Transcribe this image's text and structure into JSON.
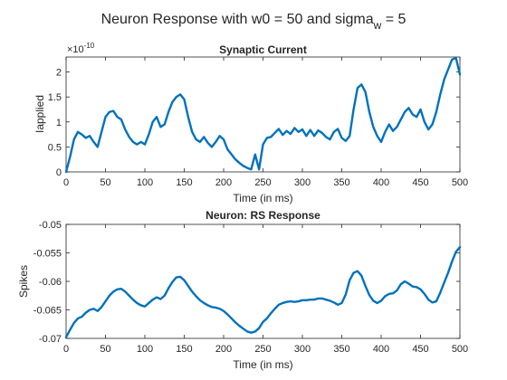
{
  "figure": {
    "suptitle_main": "Neuron Response with w0 = 50 and sigma",
    "suptitle_sub": "w",
    "suptitle_tail": " = 5"
  },
  "chart_data": [
    {
      "type": "line",
      "title": "Synaptic Current",
      "xlabel": "Time (in ms)",
      "ylabel": "Iapplied",
      "exponent_label": "×10",
      "exponent_power": "-10",
      "xlim": [
        0,
        500
      ],
      "ylim": [
        0,
        2.3
      ],
      "xticks": [
        "0",
        "50",
        "100",
        "150",
        "200",
        "250",
        "300",
        "350",
        "400",
        "450",
        "500"
      ],
      "yticks": [
        "0",
        "0.5",
        "1",
        "1.5",
        "2"
      ],
      "color": "#0072BD",
      "x": [
        0,
        5,
        10,
        15,
        20,
        25,
        30,
        35,
        40,
        45,
        50,
        55,
        60,
        65,
        70,
        75,
        80,
        85,
        90,
        95,
        100,
        105,
        110,
        115,
        120,
        125,
        130,
        135,
        140,
        145,
        150,
        155,
        160,
        165,
        170,
        175,
        180,
        185,
        190,
        195,
        200,
        205,
        210,
        215,
        220,
        225,
        230,
        235,
        240,
        245,
        250,
        255,
        260,
        265,
        270,
        275,
        280,
        285,
        290,
        295,
        300,
        305,
        310,
        315,
        320,
        325,
        330,
        335,
        340,
        345,
        350,
        355,
        360,
        365,
        370,
        375,
        380,
        385,
        390,
        395,
        400,
        405,
        410,
        415,
        420,
        425,
        430,
        435,
        440,
        445,
        450,
        455,
        460,
        465,
        470,
        475,
        480,
        485,
        490,
        495,
        500
      ],
      "y": [
        0.0,
        0.3,
        0.65,
        0.8,
        0.75,
        0.68,
        0.72,
        0.6,
        0.5,
        0.8,
        1.1,
        1.2,
        1.22,
        1.1,
        1.05,
        0.85,
        0.7,
        0.6,
        0.55,
        0.6,
        0.55,
        0.75,
        1.0,
        1.1,
        0.9,
        0.95,
        1.2,
        1.4,
        1.5,
        1.55,
        1.45,
        1.1,
        0.8,
        0.65,
        0.6,
        0.7,
        0.58,
        0.5,
        0.6,
        0.72,
        0.65,
        0.45,
        0.35,
        0.25,
        0.18,
        0.12,
        0.08,
        0.05,
        0.35,
        0.05,
        0.55,
        0.68,
        0.7,
        0.78,
        0.86,
        0.74,
        0.82,
        0.76,
        0.88,
        0.8,
        0.85,
        0.72,
        0.84,
        0.72,
        0.83,
        0.78,
        0.7,
        0.65,
        0.8,
        0.86,
        0.68,
        0.62,
        0.72,
        1.25,
        1.68,
        1.75,
        1.6,
        1.2,
        0.9,
        0.72,
        0.6,
        0.8,
        0.95,
        0.82,
        0.9,
        1.05,
        1.2,
        1.28,
        1.15,
        1.1,
        1.25,
        1.0,
        0.85,
        0.95,
        1.2,
        1.55,
        1.85,
        2.05,
        2.25,
        2.28,
        1.95
      ]
    },
    {
      "type": "line",
      "title": "Neuron: RS Response",
      "xlabel": "Time (in ms)",
      "ylabel": "Spikes",
      "xlim": [
        0,
        500
      ],
      "ylim": [
        -0.07,
        -0.05
      ],
      "xticks": [
        "0",
        "50",
        "100",
        "150",
        "200",
        "250",
        "300",
        "350",
        "400",
        "450",
        "500"
      ],
      "yticks": [
        "-0.07",
        "-0.065",
        "-0.06",
        "-0.055",
        "-0.05"
      ],
      "color": "#0072BD",
      "x": [
        0,
        5,
        10,
        15,
        20,
        25,
        30,
        35,
        40,
        45,
        50,
        55,
        60,
        65,
        70,
        75,
        80,
        85,
        90,
        95,
        100,
        105,
        110,
        115,
        120,
        125,
        130,
        135,
        140,
        145,
        150,
        155,
        160,
        165,
        170,
        175,
        180,
        185,
        190,
        195,
        200,
        205,
        210,
        215,
        220,
        225,
        230,
        235,
        240,
        245,
        250,
        255,
        260,
        265,
        270,
        275,
        280,
        285,
        290,
        295,
        300,
        305,
        310,
        315,
        320,
        325,
        330,
        335,
        340,
        345,
        350,
        355,
        360,
        365,
        370,
        375,
        380,
        385,
        390,
        395,
        400,
        405,
        410,
        415,
        420,
        425,
        430,
        435,
        440,
        445,
        450,
        455,
        460,
        465,
        470,
        475,
        480,
        485,
        490,
        495,
        500
      ],
      "y": [
        -0.0698,
        -0.0685,
        -0.0673,
        -0.0665,
        -0.0662,
        -0.0655,
        -0.065,
        -0.0648,
        -0.0652,
        -0.0645,
        -0.0635,
        -0.0625,
        -0.0618,
        -0.0614,
        -0.0613,
        -0.0618,
        -0.0625,
        -0.0632,
        -0.0638,
        -0.0642,
        -0.0644,
        -0.0638,
        -0.0632,
        -0.0628,
        -0.0631,
        -0.0625,
        -0.0612,
        -0.0601,
        -0.0593,
        -0.0592,
        -0.0598,
        -0.0608,
        -0.0618,
        -0.0626,
        -0.0633,
        -0.0638,
        -0.0642,
        -0.0645,
        -0.0646,
        -0.0648,
        -0.0652,
        -0.0658,
        -0.0665,
        -0.0672,
        -0.0678,
        -0.0683,
        -0.0688,
        -0.069,
        -0.0688,
        -0.0682,
        -0.0671,
        -0.0665,
        -0.0656,
        -0.0648,
        -0.0641,
        -0.0638,
        -0.0636,
        -0.0635,
        -0.0636,
        -0.0635,
        -0.0633,
        -0.0633,
        -0.0632,
        -0.0632,
        -0.063,
        -0.063,
        -0.0632,
        -0.0634,
        -0.0637,
        -0.0641,
        -0.0638,
        -0.0623,
        -0.0598,
        -0.0585,
        -0.0582,
        -0.059,
        -0.0608,
        -0.0624,
        -0.0634,
        -0.0638,
        -0.0634,
        -0.0626,
        -0.0622,
        -0.0621,
        -0.0616,
        -0.0605,
        -0.06,
        -0.0604,
        -0.0609,
        -0.061,
        -0.0614,
        -0.0622,
        -0.0632,
        -0.0637,
        -0.0635,
        -0.062,
        -0.0602,
        -0.0585,
        -0.0565,
        -0.0548,
        -0.054
      ]
    }
  ]
}
